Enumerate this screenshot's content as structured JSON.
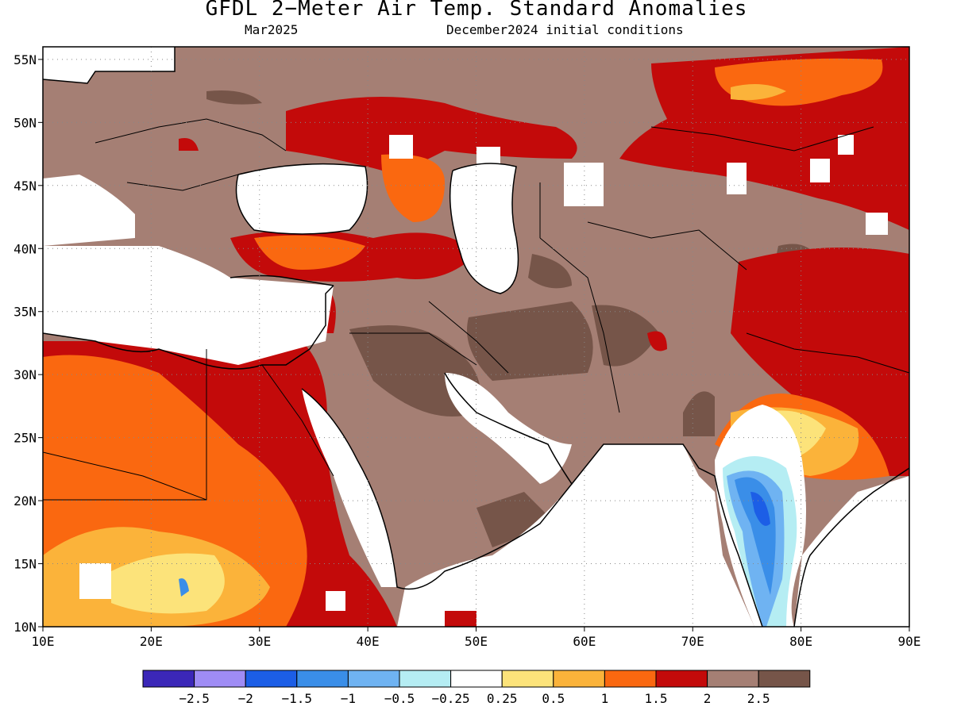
{
  "title": "GFDL 2−Meter Air Temp. Standard Anomalies",
  "subtitle_left": "Mar2025",
  "subtitle_right": "December2024 initial conditions",
  "lon_ticks": [
    "10E",
    "20E",
    "30E",
    "40E",
    "50E",
    "60E",
    "70E",
    "80E",
    "90E"
  ],
  "lat_ticks": [
    "10N",
    "15N",
    "20N",
    "25N",
    "30N",
    "35N",
    "40N",
    "45N",
    "50N",
    "55N"
  ],
  "legend": {
    "colors": [
      "#3b27b8",
      "#9f8cf5",
      "#1c5ee6",
      "#3a8ee8",
      "#6fb3f2",
      "#b5edf3",
      "#ffffff",
      "#fce37a",
      "#fbb33a",
      "#fa6810",
      "#c30a0a",
      "#a57f74",
      "#765549"
    ],
    "labels": [
      "−2.5",
      "−2",
      "−1.5",
      "−1",
      "−0.5",
      "−0.25",
      "0.25",
      "0.5",
      "1",
      "1.5",
      "2",
      "2.5"
    ]
  },
  "map_extent": {
    "lon": [
      10,
      90
    ],
    "lat": [
      10,
      56
    ]
  }
}
